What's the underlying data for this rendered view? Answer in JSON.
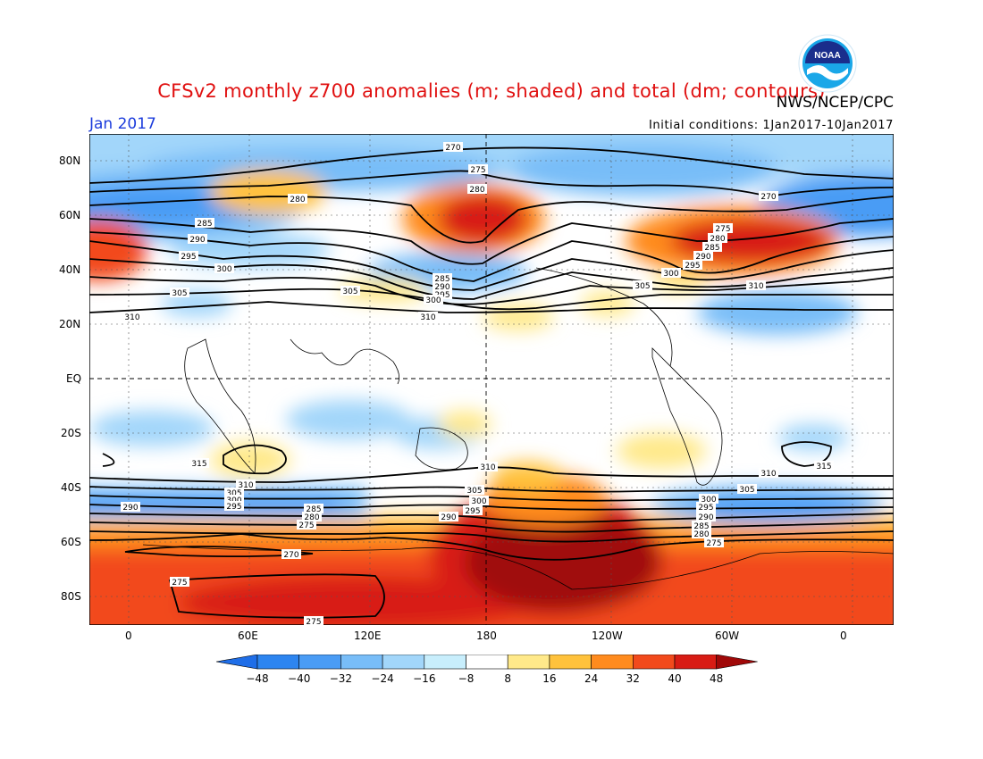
{
  "header": {
    "title": "CFSv2 monthly z700 anomalies (m; shaded) and total (dm; contours)",
    "agency": "NWS/NCEP/CPC",
    "month": "Jan 2017",
    "initial_conditions": "Initial conditions: 1Jan2017-10Jan2017",
    "logo_text": "NOAA"
  },
  "axes": {
    "lat_labels": [
      "80N",
      "60N",
      "40N",
      "20N",
      "EQ",
      "20S",
      "40S",
      "60S",
      "80S"
    ],
    "lon_labels": [
      "0",
      "60E",
      "120E",
      "180",
      "120W",
      "60W",
      "0"
    ]
  },
  "colorbar": {
    "labels": [
      "-48",
      "-40",
      "-32",
      "-24",
      "-16",
      "-8",
      "8",
      "16",
      "24",
      "32",
      "40",
      "48"
    ],
    "colors": [
      "#1f6ee8",
      "#2d85f0",
      "#4a9cf5",
      "#78bdf8",
      "#a2d6fa",
      "#c8eefc",
      "#ffffff",
      "#ffe98a",
      "#ffc23c",
      "#ff8b1e",
      "#f24a1c",
      "#d81c14",
      "#a00808"
    ]
  },
  "contour_labels": [
    "270",
    "275",
    "280",
    "285",
    "290",
    "295",
    "300",
    "305",
    "310",
    "315"
  ]
}
